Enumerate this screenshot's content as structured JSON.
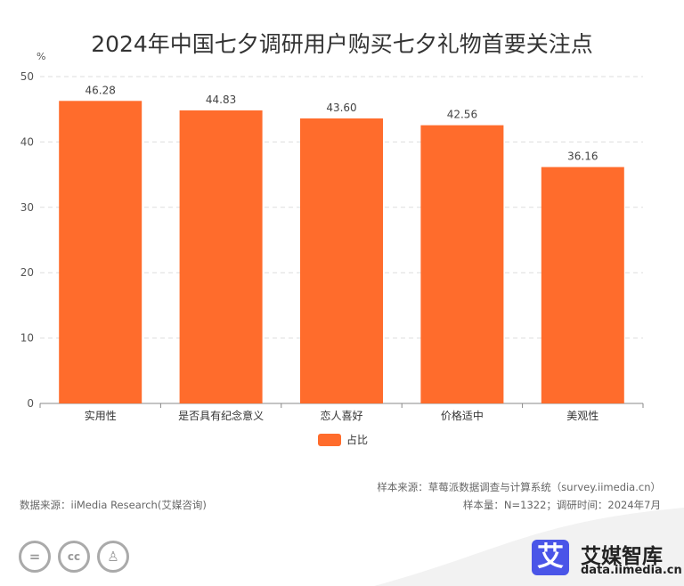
{
  "chart_data": {
    "type": "bar",
    "title": "2024年中国七夕调研用户购买七夕礼物首要关注点",
    "ylabel": "%",
    "categories": [
      "实用性",
      "是否具有纪念意义",
      "恋人喜好",
      "价格适中",
      "美观性"
    ],
    "series": [
      {
        "name": "占比",
        "values": [
          46.28,
          44.83,
          43.6,
          42.56,
          36.16
        ],
        "labels": [
          "46.28",
          "44.83",
          "43.60",
          "42.56",
          "36.16"
        ],
        "color": "#ff6c2c"
      }
    ],
    "ylim": [
      0,
      50
    ],
    "yticks": [
      "0",
      "10",
      "20",
      "30",
      "40",
      "50"
    ],
    "grid": true,
    "legend": "bottom"
  },
  "footer": {
    "data_source": "数据来源：iiMedia Research(艾媒咨询)",
    "sample_source": "样本来源：草莓派数据调查与计算系统（survey.iimedia.cn）",
    "sample_info": "样本量：N=1322；调研时间：2024年7月",
    "logo_name": "艾媒智库",
    "logo_url": "data.iimedia.cn",
    "logo_mark": "艾",
    "license_icons": [
      "nd-icon",
      "cc-icon",
      "by-icon"
    ]
  }
}
